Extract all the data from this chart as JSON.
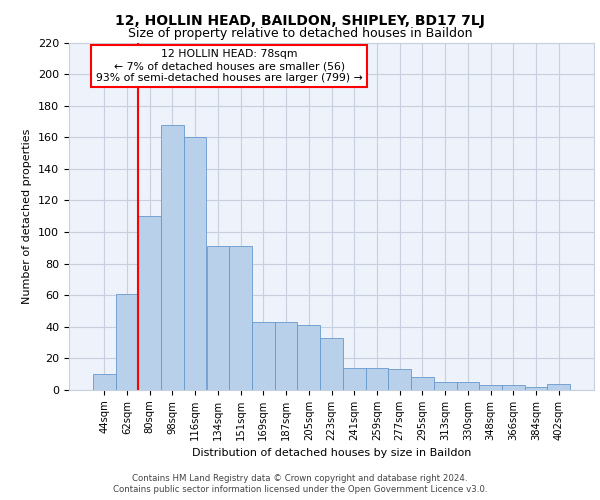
{
  "title1": "12, HOLLIN HEAD, BAILDON, SHIPLEY, BD17 7LJ",
  "title2": "Size of property relative to detached houses in Baildon",
  "xlabel": "Distribution of detached houses by size in Baildon",
  "ylabel": "Number of detached properties",
  "categories": [
    "44sqm",
    "62sqm",
    "80sqm",
    "98sqm",
    "116sqm",
    "134sqm",
    "151sqm",
    "169sqm",
    "187sqm",
    "205sqm",
    "223sqm",
    "241sqm",
    "259sqm",
    "277sqm",
    "295sqm",
    "313sqm",
    "330sqm",
    "348sqm",
    "366sqm",
    "384sqm",
    "402sqm"
  ],
  "values": [
    10,
    61,
    110,
    168,
    160,
    91,
    91,
    43,
    43,
    41,
    33,
    14,
    14,
    13,
    8,
    5,
    5,
    3,
    3,
    2,
    4
  ],
  "bar_color": "#b8d0ea",
  "bar_edge_color": "#6699cc",
  "annotation_line_color": "red",
  "annotation_text_line1": "12 HOLLIN HEAD: 78sqm",
  "annotation_text_line2": "← 7% of detached houses are smaller (56)",
  "annotation_text_line3": "93% of semi-detached houses are larger (799) →",
  "annotation_box_color": "white",
  "annotation_box_edge_color": "red",
  "ylim": [
    0,
    220
  ],
  "yticks": [
    0,
    20,
    40,
    60,
    80,
    100,
    120,
    140,
    160,
    180,
    200,
    220
  ],
  "footer_line1": "Contains HM Land Registry data © Crown copyright and database right 2024.",
  "footer_line2": "Contains public sector information licensed under the Open Government Licence v3.0.",
  "bg_color": "#eef2fa",
  "grid_color": "#c8d0e0"
}
